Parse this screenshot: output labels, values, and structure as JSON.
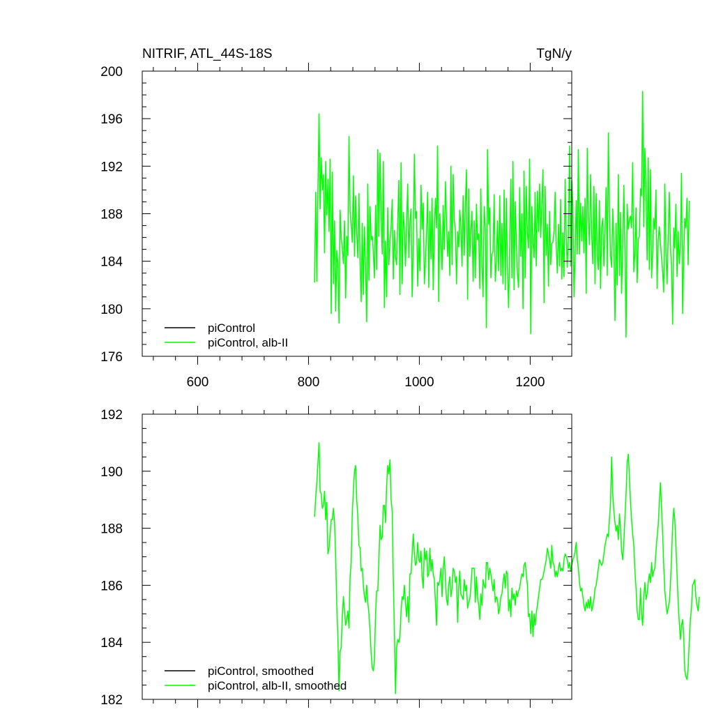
{
  "chart_data": [
    {
      "type": "line",
      "title": "NITRIF, ATL_44S-18S",
      "units": "TgN/y",
      "xlim": [
        500,
        1275
      ],
      "ylim": [
        176,
        200
      ],
      "xticks": [
        600,
        800,
        1000,
        1200
      ],
      "xtick_labels": [
        "600",
        "800",
        "1000",
        "1200"
      ],
      "yticks": [
        176,
        180,
        184,
        188,
        192,
        196,
        200
      ],
      "ytick_labels": [
        "176",
        "180",
        "184",
        "188",
        "192",
        "196",
        "200"
      ],
      "legend": {
        "position": "bottom-left",
        "entries": [
          {
            "label": "piControl",
            "color": "#000000"
          },
          {
            "label": "piControl, alb-II",
            "color": "#00ff00"
          }
        ]
      },
      "series": [
        {
          "name": "piControl",
          "color": "#000000",
          "x": [],
          "y": []
        },
        {
          "name": "piControl, alb-II",
          "color": "#00ff00",
          "x_start": 811,
          "x_step": 2,
          "y": [
            182.2,
            189.8,
            182.3,
            190.1,
            196.4,
            188.4,
            192.7,
            190.0,
            191.3,
            184.7,
            192.4,
            187.9,
            190.9,
            186.5,
            192.6,
            179.6,
            191.5,
            182.1,
            187.4,
            179.8,
            184.9,
            183.8,
            178.8,
            188.3,
            186.0,
            185.1,
            183.8,
            187.4,
            180.9,
            186.1,
            184.5,
            194.5,
            188.1,
            187.1,
            185.6,
            191.2,
            184.4,
            189.5,
            186.4,
            184.3,
            189.7,
            183.8,
            180.6,
            187.2,
            181.2,
            186.9,
            183.6,
            178.9,
            190.5,
            182.4,
            188.6,
            185.8,
            186.1,
            184.8,
            182.6,
            188.7,
            183.3,
            193.4,
            186.1,
            193.1,
            188.0,
            184.6,
            192.4,
            180.1,
            185.7,
            181.0,
            188.5,
            183.7,
            185.7,
            186.9,
            189.2,
            182.5,
            186.6,
            184.4,
            183.7,
            187.2,
            190.8,
            181.2,
            192.3,
            182.1,
            188.1,
            186.7,
            183.6,
            187.2,
            190.5,
            184.3,
            187.4,
            188.4,
            181.0,
            185.6,
            193.0,
            187.6,
            188.2,
            181.9,
            185.9,
            183.2,
            190.4,
            186.7,
            188.9,
            182.1,
            184.1,
            186.4,
            189.8,
            181.8,
            188.2,
            184.2,
            189.3,
            181.6,
            186.7,
            189.3,
            186.8,
            193.7,
            180.6,
            188.0,
            185.6,
            183.3,
            188.7,
            185.0,
            190.7,
            187.4,
            184.4,
            186.5,
            182.8,
            192.0,
            183.7,
            191.3,
            187.5,
            186.6,
            182.1,
            186.5,
            185.2,
            188.3,
            187.0,
            183.6,
            189.5,
            184.5,
            188.8,
            191.7,
            180.8,
            190.1,
            184.4,
            186.6,
            188.2,
            182.3,
            187.4,
            182.6,
            188.8,
            185.8,
            186.3,
            181.7,
            190.1,
            183.8,
            181.0,
            188.6,
            186.8,
            178.4,
            193.4,
            187.1,
            188.5,
            182.6,
            184.6,
            184.8,
            189.6,
            182.3,
            184.0,
            187.4,
            183.2,
            189.5,
            182.8,
            187.2,
            182.1,
            190.0,
            181.6,
            189.3,
            183.4,
            180.1,
            185.3,
            190.9,
            182.6,
            192.4,
            181.6,
            189.0,
            185.6,
            183.0,
            181.8,
            190.2,
            184.4,
            188.0,
            180.0,
            191.6,
            182.6,
            190.3,
            186.4,
            185.1,
            192.6,
            177.9,
            188.6,
            185.6,
            184.3,
            189.8,
            183.6,
            189.9,
            186.5,
            190.5,
            186.0,
            188.8,
            191.7,
            180.5,
            190.3,
            184.5,
            187.1,
            181.9,
            188.2,
            183.7,
            185.5,
            185.6,
            186.6,
            189.8,
            185.4,
            183.0,
            187.1,
            183.6,
            189.2,
            182.5,
            186.4,
            182.7,
            190.9,
            185.9,
            183.5,
            186.1,
            193.7,
            183.6,
            190.8,
            188.6,
            181.0,
            184.7,
            189.1,
            184.6,
            193.4,
            184.6,
            188.9,
            185.7,
            188.6,
            184.7,
            189.3,
            181.3,
            193.5,
            187.6,
            185.4,
            191.3,
            186.3,
            183.8,
            190.3,
            182.1,
            189.7,
            184.4,
            183.3,
            189.1,
            181.7,
            186.8,
            187.6,
            183.6,
            186.4,
            190.2,
            182.8,
            194.8,
            188.3,
            184.4,
            183.5,
            188.4,
            185.3,
            179.0,
            187.2,
            182.0,
            191.3,
            182.8,
            188.1,
            181.3,
            185.2,
            190.4,
            184.7,
            177.6,
            188.8,
            186.7,
            187.5,
            187.8,
            186.8,
            192.3,
            183.1,
            184.7,
            188.5,
            182.2,
            185.9,
            186.1,
            190.1,
            189.5,
            198.3,
            186.9,
            193.5,
            190.0,
            184.1,
            192.7,
            183.3,
            191.7,
            182.6,
            184.8,
            187.6,
            186.7,
            190.0,
            181.7,
            185.8,
            186.9,
            185.5,
            184.3,
            183.1,
            181.4,
            190.5,
            184.8,
            182.1,
            186.0,
            189.8,
            185.3,
            183.4,
            178.7,
            186.8,
            185.1,
            188.8,
            182.7,
            186.5,
            183.8,
            185.3,
            191.4,
            179.6,
            184.5,
            187.6,
            186.8,
            189.3,
            183.7,
            189.1
          ]
        }
      ]
    },
    {
      "type": "line",
      "xlim": [
        500,
        1275
      ],
      "ylim": [
        182,
        192
      ],
      "xticks": [
        600,
        800,
        1000,
        1200
      ],
      "yticks": [
        182,
        184,
        186,
        188,
        190,
        192
      ],
      "ytick_labels": [
        "182",
        "184",
        "186",
        "188",
        "190",
        "192"
      ],
      "legend": {
        "position": "bottom-left",
        "entries": [
          {
            "label": "piControl, smoothed",
            "color": "#000000"
          },
          {
            "label": "piControl, alb-II, smoothed",
            "color": "#00ff00"
          }
        ]
      },
      "series": [
        {
          "name": "piControl, smoothed",
          "color": "#000000",
          "x": [],
          "y": []
        },
        {
          "name": "piControl, alb-II, smoothed",
          "color": "#00ff00",
          "x_start": 811,
          "x_step": 2,
          "y": [
            188.4,
            189.1,
            189.6,
            190.3,
            191.0,
            189.3,
            189.2,
            188.7,
            188.8,
            189.3,
            188.3,
            188.9,
            187.1,
            187.3,
            187.8,
            188.3,
            188.3,
            188.7,
            188.2,
            187.0,
            185.3,
            184.2,
            182.3,
            183.7,
            183.8,
            184.9,
            185.6,
            185.1,
            184.6,
            184.8,
            185.1,
            184.5,
            186.3,
            186.8,
            188.5,
            189.3,
            190.0,
            190.2,
            189.0,
            188.4,
            187.4,
            187.3,
            186.5,
            186.6,
            186.0,
            185.6,
            185.4,
            186.0,
            185.4,
            185.0,
            184.4,
            183.6,
            183.1,
            183.0,
            183.4,
            185.0,
            185.8,
            185.8,
            186.9,
            188.1,
            187.6,
            187.7,
            188.8,
            188.8,
            188.2,
            189.5,
            190.2,
            189.9,
            190.4,
            189.0,
            188.6,
            186.2,
            184.3,
            182.2,
            183.8,
            184.1,
            184.0,
            184.2,
            185.1,
            185.6,
            185.5,
            186.0,
            185.4,
            184.9,
            185.6,
            184.7,
            186.4,
            186.4,
            187.1,
            187.8,
            187.1,
            186.7,
            186.8,
            187.5,
            186.9,
            186.8,
            187.2,
            186.3,
            185.9,
            187.3,
            186.9,
            187.2,
            186.3,
            186.4,
            187.3,
            186.5,
            186.9,
            186.4,
            186.2,
            185.4,
            184.6,
            186.1,
            186.0,
            186.2,
            186.6,
            185.6,
            186.6,
            187.0,
            186.2,
            185.5,
            185.3,
            186.0,
            186.3,
            185.6,
            185.9,
            186.6,
            186.5,
            186.1,
            186.3,
            184.7,
            185.9,
            186.5,
            185.7,
            185.6,
            185.5,
            186.2,
            185.8,
            186.0,
            185.2,
            185.4,
            185.5,
            185.9,
            186.6,
            186.6,
            186.6,
            185.4,
            186.3,
            185.6,
            185.3,
            184.8,
            185.7,
            185.3,
            186.2,
            186.0,
            185.9,
            186.8,
            186.8,
            186.2,
            186.6,
            186.4,
            186.1,
            185.8,
            186.2,
            185.4,
            185.6,
            185.5,
            185.0,
            185.2,
            185.6,
            185.7,
            186.1,
            186.4,
            185.9,
            186.5,
            186.4,
            185.1,
            185.5,
            184.9,
            185.9,
            185.5,
            185.7,
            185.3,
            185.8,
            185.6,
            185.8,
            185.9,
            186.2,
            186.4,
            186.3,
            186.7,
            186.8,
            186.4,
            186.0,
            184.9,
            185.0,
            184.3,
            185.1,
            184.2,
            185.0,
            184.6,
            185.0,
            185.3,
            185.6,
            185.9,
            186.2,
            186.2,
            186.3,
            186.5,
            186.7,
            186.9,
            187.3,
            187.1,
            186.9,
            186.6,
            187.4,
            186.8,
            186.7,
            186.3,
            186.5,
            186.3,
            186.6,
            186.8,
            186.5,
            186.6,
            186.5,
            186.9,
            187.1,
            187.0,
            186.9,
            186.6,
            186.8,
            186.5,
            186.7,
            186.9,
            187.0,
            187.2,
            187.5,
            186.9,
            186.6,
            186.1,
            185.8,
            185.9,
            185.6,
            185.3,
            185.1,
            185.4,
            185.2,
            185.5,
            185.2,
            185.6,
            185.1,
            185.3,
            185.5,
            185.9,
            186.0,
            186.3,
            186.6,
            186.9,
            186.8,
            186.7,
            186.8,
            187.1,
            187.4,
            187.6,
            187.8,
            187.7,
            188.3,
            188.9,
            190.5,
            189.2,
            188.6,
            188.2,
            187.9,
            188.1,
            187.6,
            188.5,
            188.0,
            187.2,
            186.9,
            187.5,
            188.4,
            189.2,
            190.3,
            190.6,
            189.8,
            188.9,
            188.3,
            187.8,
            187.4,
            186.5,
            185.9,
            185.1,
            184.8,
            184.8,
            185.9,
            185.0,
            184.6,
            185.6,
            186.1,
            185.5,
            185.7,
            186.1,
            186.4,
            186.1,
            186.8,
            186.3,
            186.5,
            186.6,
            187.2,
            187.7,
            188.1,
            188.9,
            189.6,
            188.7,
            187.8,
            186.7,
            185.8,
            185.4,
            185.0,
            185.2,
            185.4,
            186.0,
            187.0,
            188.1,
            188.7,
            188.3,
            187.4,
            186.4,
            185.4,
            184.7,
            184.1,
            184.6,
            184.8,
            184.2,
            183.0,
            182.8,
            182.7,
            183.1,
            184.0,
            184.8,
            185.2,
            186.0,
            186.1,
            186.2,
            185.6,
            185.3,
            185.1,
            185.6
          ]
        }
      ]
    }
  ]
}
